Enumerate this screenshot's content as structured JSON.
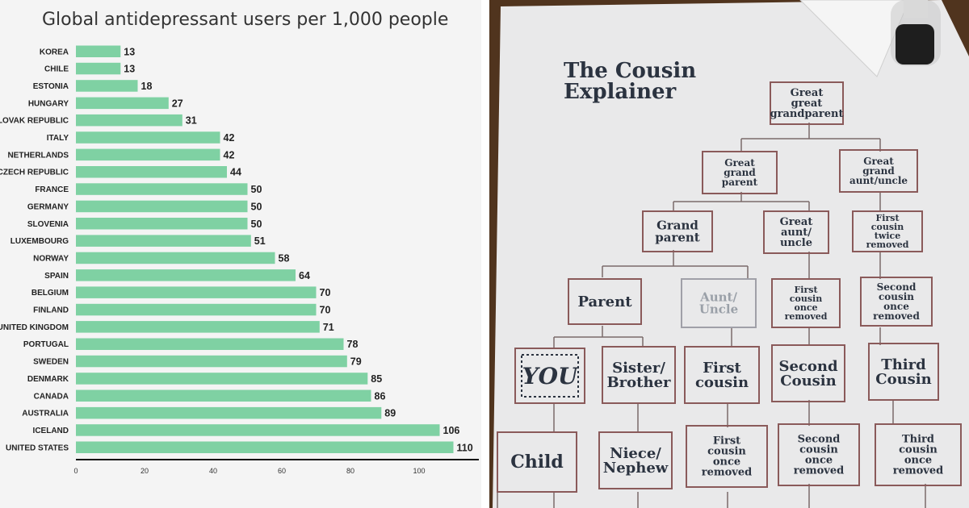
{
  "chart_data": {
    "type": "bar",
    "orientation": "horizontal",
    "title": "Global antidepressant users per 1,000 people",
    "categories": [
      "KOREA",
      "CHILE",
      "ESTONIA",
      "HUNGARY",
      "SLOVAK REPUBLIC",
      "ITALY",
      "NETHERLANDS",
      "CZECH REPUBLIC",
      "FRANCE",
      "GERMANY",
      "SLOVENIA",
      "LUXEMBOURG",
      "NORWAY",
      "SPAIN",
      "BELGIUM",
      "FINLAND",
      "UNITED KINGDOM",
      "PORTUGAL",
      "SWEDEN",
      "DENMARK",
      "CANADA",
      "AUSTRALIA",
      "ICELAND",
      "UNITED STATES"
    ],
    "values": [
      13,
      13,
      18,
      27,
      31,
      42,
      42,
      44,
      50,
      50,
      50,
      51,
      58,
      64,
      70,
      70,
      71,
      78,
      79,
      85,
      86,
      89,
      106,
      110
    ],
    "xlim": [
      0,
      120
    ],
    "xticks": [
      0,
      20,
      40,
      60,
      80,
      100
    ],
    "xlabel": "",
    "ylabel": "",
    "bar_color": "#7fd1a3",
    "data_labels": true,
    "grid": false
  },
  "cousin_chart": {
    "title_line1": "The Cousin",
    "title_line2": "Explainer",
    "boxes": {
      "great_great_grandparent": [
        "Great",
        "great",
        "grandparent"
      ],
      "great_grandparent": [
        "Great",
        "grand",
        "parent"
      ],
      "great_grand_aunt_uncle": [
        "Great",
        "grand",
        "aunt/uncle"
      ],
      "grandparent": [
        "Grand",
        "parent"
      ],
      "great_aunt_uncle": [
        "Great",
        "aunt/",
        "uncle"
      ],
      "first_cousin_twice_removed": [
        "First",
        "cousin",
        "twice",
        "removed"
      ],
      "parent": [
        "Parent"
      ],
      "aunt_uncle": [
        "Aunt/",
        "Uncle"
      ],
      "first_cousin_once_removed_upper": [
        "First",
        "cousin",
        "once",
        "removed"
      ],
      "second_cousin_once_removed_upper": [
        "Second",
        "cousin",
        "once",
        "removed"
      ],
      "you": [
        "YOU"
      ],
      "sister_brother": [
        "Sister/",
        "Brother"
      ],
      "first_cousin": [
        "First",
        "cousin"
      ],
      "second_cousin": [
        "Second",
        "Cousin"
      ],
      "third_cousin": [
        "Third",
        "Cousin"
      ],
      "child": [
        "Child"
      ],
      "niece_nephew": [
        "Niece/",
        "Nephew"
      ],
      "first_cousin_once_removed_lower": [
        "First",
        "cousin",
        "once",
        "removed"
      ],
      "second_cousin_once_removed_lower": [
        "Second",
        "cousin",
        "once",
        "removed"
      ],
      "third_cousin_once_removed": [
        "Third",
        "cousin",
        "once",
        "removed"
      ]
    }
  },
  "colors": {
    "panel_bg": "#f4f4f4",
    "cloth": "#e9e9ea",
    "ink": "#2b3340",
    "box_border": "#8a5a5a",
    "line": "#7a6a6a",
    "wood": "#5a3b22"
  }
}
